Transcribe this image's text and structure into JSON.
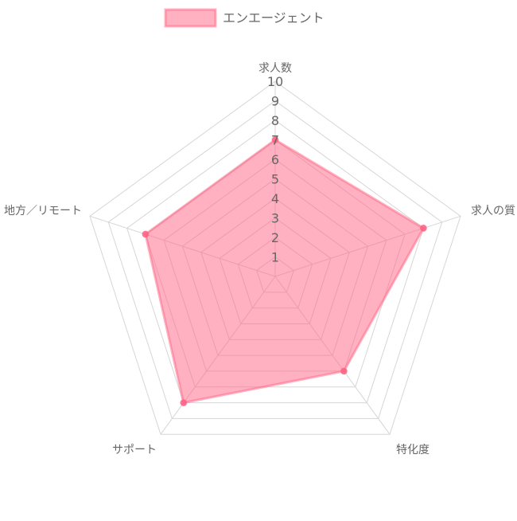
{
  "chart_data": {
    "type": "radar",
    "axes": [
      "求人数",
      "求人の質",
      "特化度",
      "サポート",
      "地方／リモート"
    ],
    "ticks": [
      "1",
      "2",
      "3",
      "4",
      "5",
      "6",
      "7",
      "8",
      "9",
      "10"
    ],
    "r_range": [
      0,
      10
    ],
    "grid": true,
    "legend_position": "top",
    "series": [
      {
        "name": "エンエージェント",
        "values": [
          7,
          8,
          6,
          8,
          7
        ],
        "fill_color": "#ff6384",
        "line_color": "#ff6384"
      }
    ]
  }
}
